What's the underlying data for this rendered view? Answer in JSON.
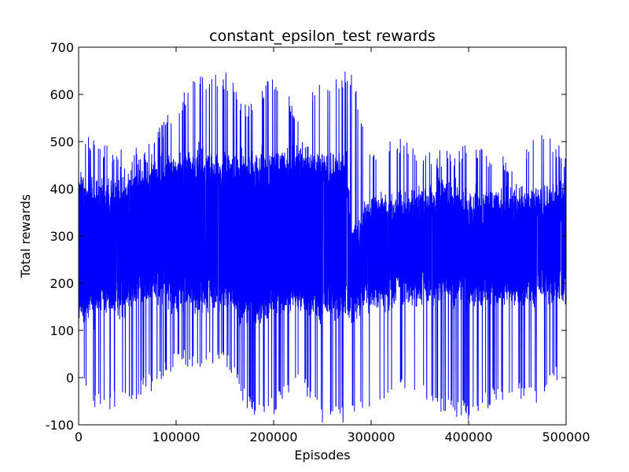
{
  "chart_data": {
    "type": "line",
    "title": "constant_epsilon_test rewards",
    "xlabel": "Episodes",
    "ylabel": "Total rewards",
    "xlim": [
      0,
      500000
    ],
    "ylim": [
      -100,
      700
    ],
    "xticks": [
      0,
      100000,
      200000,
      300000,
      400000,
      500000
    ],
    "yticks": [
      -100,
      0,
      100,
      200,
      300,
      400,
      500,
      600,
      700
    ],
    "grid": false,
    "line_color": "#0000ff",
    "series": [
      {
        "x": [
          0,
          25000,
          50000,
          75000,
          100000,
          125000,
          150000,
          175000,
          200000,
          225000,
          250000,
          275000,
          280000,
          300000,
          325000,
          350000,
          375000,
          400000,
          425000,
          450000,
          475000,
          500000
        ],
        "band_max": [
          540,
          500,
          480,
          510,
          590,
          650,
          650,
          580,
          650,
          570,
          645,
          650,
          650,
          470,
          515,
          490,
          480,
          500,
          480,
          460,
          550,
          470
        ],
        "band_min": [
          -30,
          -80,
          -55,
          -30,
          20,
          20,
          30,
          -80,
          -80,
          -15,
          -100,
          -100,
          -80,
          -90,
          -20,
          -40,
          -80,
          -90,
          -60,
          -50,
          -60,
          20
        ],
        "upper_cluster": [
          390,
          380,
          380,
          430,
          440,
          440,
          430,
          430,
          440,
          450,
          440,
          440,
          280,
          360,
          350,
          360,
          380,
          350,
          360,
          360,
          370,
          380
        ],
        "lower_cluster": [
          160,
          170,
          170,
          210,
          180,
          180,
          190,
          140,
          170,
          180,
          160,
          170,
          160,
          180,
          190,
          200,
          200,
          190,
          190,
          190,
          200,
          200
        ]
      }
    ]
  }
}
